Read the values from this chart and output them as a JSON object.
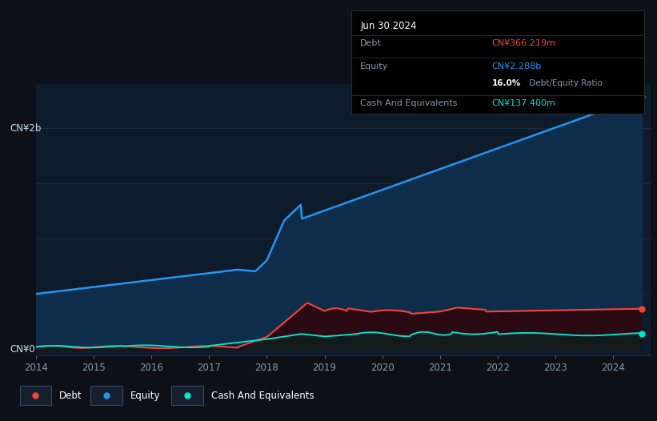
{
  "bg_color": "#0d1117",
  "plot_bg_color": "#0d1b2a",
  "grid_color": "#1e3050",
  "x_ticks": [
    2014,
    2015,
    2016,
    2017,
    2018,
    2019,
    2020,
    2021,
    2022,
    2023,
    2024
  ],
  "y_label_top": "CN¥2b",
  "y_label_bottom": "CN¥0",
  "equity_color": "#2196f3",
  "debt_color": "#f44336",
  "cash_color": "#00e5cc",
  "equity_fill": "#0d2d4a",
  "debt_fill": "#2a0a12",
  "cash_fill": "#0a2020",
  "tooltip_title": "Jun 30 2024",
  "tooltip_debt_label": "Debt",
  "tooltip_debt_value": "CN¥366.219m",
  "tooltip_equity_label": "Equity",
  "tooltip_equity_value": "CN¥2.288b",
  "tooltip_ratio_bold": "16.0%",
  "tooltip_ratio_rest": " Debt/Equity Ratio",
  "tooltip_cash_label": "Cash And Equivalents",
  "tooltip_cash_value": "CN¥137.400m",
  "legend_labels": [
    "Debt",
    "Equity",
    "Cash And Equivalents"
  ]
}
